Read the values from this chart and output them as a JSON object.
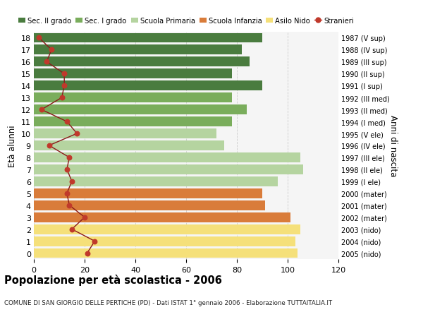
{
  "ages": [
    18,
    17,
    16,
    15,
    14,
    13,
    12,
    11,
    10,
    9,
    8,
    7,
    6,
    5,
    4,
    3,
    2,
    1,
    0
  ],
  "anni_nascita": [
    "1987 (V sup)",
    "1988 (IV sup)",
    "1989 (III sup)",
    "1990 (II sup)",
    "1991 (I sup)",
    "1992 (III med)",
    "1993 (II med)",
    "1994 (I med)",
    "1995 (V ele)",
    "1996 (IV ele)",
    "1997 (III ele)",
    "1998 (II ele)",
    "1999 (I ele)",
    "2000 (mater)",
    "2001 (mater)",
    "2002 (mater)",
    "2003 (nido)",
    "2004 (nido)",
    "2005 (nido)"
  ],
  "bar_values": [
    90,
    82,
    85,
    78,
    90,
    78,
    84,
    78,
    72,
    75,
    105,
    106,
    96,
    90,
    91,
    101,
    105,
    103,
    104
  ],
  "bar_colors": [
    "#4a7c3f",
    "#4a7c3f",
    "#4a7c3f",
    "#4a7c3f",
    "#4a7c3f",
    "#7aad5c",
    "#7aad5c",
    "#7aad5c",
    "#b5d4a0",
    "#b5d4a0",
    "#b5d4a0",
    "#b5d4a0",
    "#b5d4a0",
    "#d97c3a",
    "#d97c3a",
    "#d97c3a",
    "#f5e07a",
    "#f5e07a",
    "#f5e07a"
  ],
  "stranieri_values": [
    2,
    7,
    5,
    12,
    12,
    11,
    3,
    13,
    17,
    6,
    14,
    13,
    15,
    13,
    14,
    20,
    15,
    24,
    21
  ],
  "legend_labels": [
    "Sec. II grado",
    "Sec. I grado",
    "Scuola Primaria",
    "Scuola Infanzia",
    "Asilo Nido",
    "Stranieri"
  ],
  "legend_colors": [
    "#4a7c3f",
    "#7aad5c",
    "#b5d4a0",
    "#d97c3a",
    "#f5e07a",
    "#c0392b"
  ],
  "title": "Popolazione per età scolastica - 2006",
  "subtitle": "COMUNE DI SAN GIORGIO DELLE PERTICHE (PD) - Dati ISTAT 1° gennaio 2006 - Elaborazione TUTTAITALIA.IT",
  "xlabel_right": "Anni di nascita",
  "ylabel_left": "Età alunni",
  "xlim": [
    0,
    120
  ],
  "xticks": [
    0,
    20,
    40,
    60,
    80,
    100,
    120
  ],
  "background_color": "#f5f5f5",
  "bar_background": "#ffffff",
  "grid_color": "#cccccc"
}
